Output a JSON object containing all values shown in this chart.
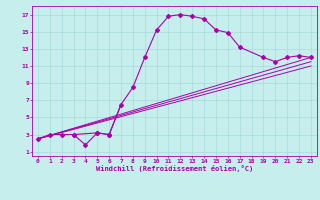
{
  "xlabel": "Windchill (Refroidissement éolien,°C)",
  "bg_color": "#c5eeed",
  "grid_color": "#a8dada",
  "line_color": "#aa00aa",
  "xlim": [
    -0.5,
    23.5
  ],
  "ylim": [
    0.5,
    18
  ],
  "xticks": [
    0,
    1,
    2,
    3,
    4,
    5,
    6,
    7,
    8,
    9,
    10,
    11,
    12,
    13,
    14,
    15,
    16,
    17,
    18,
    19,
    20,
    21,
    22,
    23
  ],
  "yticks": [
    1,
    3,
    5,
    7,
    9,
    11,
    13,
    15,
    17
  ],
  "curve_main_x": [
    3,
    5,
    6,
    7,
    8,
    9,
    10,
    11,
    12,
    13,
    14,
    15,
    16,
    17,
    19,
    20,
    21,
    22,
    23
  ],
  "curve_main_y": [
    3.0,
    3.2,
    3.0,
    6.5,
    8.5,
    12.0,
    15.2,
    16.8,
    17.0,
    16.8,
    16.5,
    15.2,
    14.9,
    13.2,
    12.0,
    11.5,
    12.0,
    12.2,
    12.0
  ],
  "early_x": [
    0,
    1,
    2,
    3,
    4,
    5,
    6
  ],
  "early_y": [
    2.5,
    3.0,
    3.0,
    3.0,
    1.8,
    3.2,
    3.0
  ],
  "line1_x": [
    0,
    23
  ],
  "line1_y": [
    2.5,
    11.5
  ],
  "line2_x": [
    0,
    23
  ],
  "line2_y": [
    2.5,
    12.0
  ],
  "line3_x": [
    0,
    23
  ],
  "line3_y": [
    2.5,
    11.0
  ]
}
